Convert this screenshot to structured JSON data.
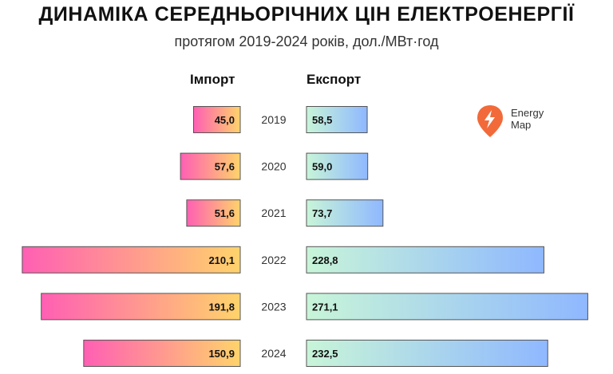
{
  "title": "ДИНАМІКА СЕРЕДНЬОРІЧНИХ ЦІН ЕЛЕКТРОЕНЕРГІЇ",
  "subtitle": "протягом 2019-2024 років, дол./МВт·год",
  "logo": {
    "line1": "Energy",
    "line2": "Map"
  },
  "colors": {
    "import_start": "#ff5fb3",
    "import_end": "#ffd36b",
    "export_start": "#c8f5d8",
    "export_end": "#8fb8ff",
    "logo": "#f26a3a"
  },
  "chart_data": {
    "type": "bar",
    "categories": [
      "2019",
      "2020",
      "2021",
      "2022",
      "2023",
      "2024"
    ],
    "series": [
      {
        "name": "Імпорт",
        "values": [
          45.0,
          57.6,
          51.6,
          210.1,
          191.8,
          150.9
        ],
        "labels": [
          "45,0",
          "57,6",
          "51,6",
          "210,1",
          "191,8",
          "150,9"
        ]
      },
      {
        "name": "Експорт",
        "values": [
          58.5,
          59.0,
          73.7,
          228.8,
          271.1,
          232.5
        ],
        "labels": [
          "58,5",
          "59,0",
          "73,7",
          "228,8",
          "271,1",
          "232,5"
        ]
      }
    ]
  }
}
